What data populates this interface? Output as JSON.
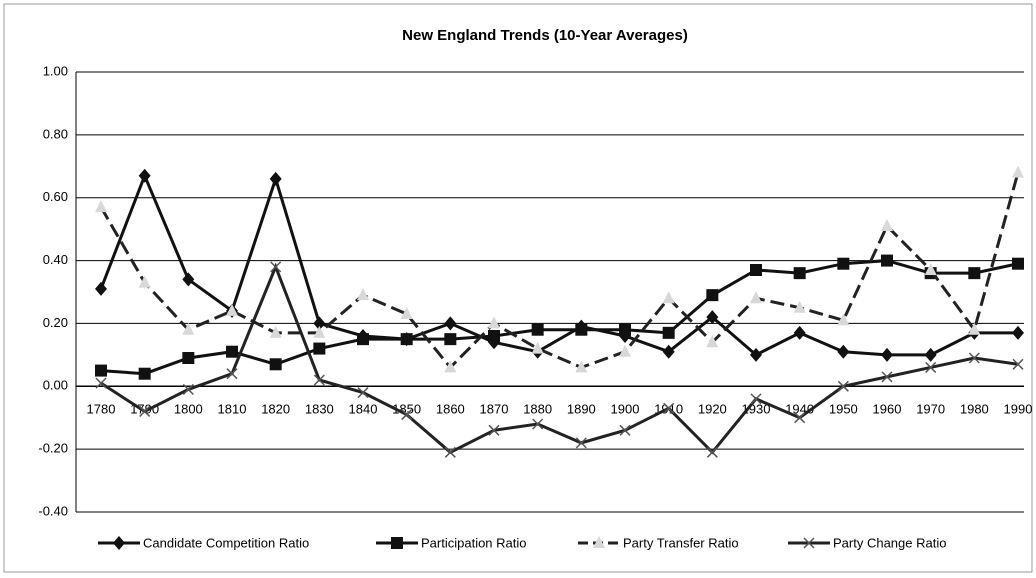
{
  "chart_data": {
    "type": "line",
    "title": "New England Trends (10-Year Averages)",
    "categories": [
      "1780",
      "1790",
      "1800",
      "1810",
      "1820",
      "1830",
      "1840",
      "1850",
      "1860",
      "1870",
      "1880",
      "1890",
      "1900",
      "1910",
      "1920",
      "1930",
      "1940",
      "1950",
      "1960",
      "1970",
      "1980",
      "1990"
    ],
    "ylim": [
      -0.4,
      1.0
    ],
    "yticks": [
      {
        "value": -0.4,
        "label": "-0.40"
      },
      {
        "value": -0.2,
        "label": "-0.20"
      },
      {
        "value": 0,
        "label": "0.00"
      },
      {
        "value": 0.2,
        "label": "0.20"
      },
      {
        "value": 0.4,
        "label": "0.40"
      },
      {
        "value": 0.6,
        "label": "0.60"
      },
      {
        "value": 0.8,
        "label": "0.80"
      },
      {
        "value": 1.0,
        "label": "1.00"
      }
    ],
    "grid": true,
    "legend": "bottom",
    "series": [
      {
        "name": "Candidate Competition Ratio",
        "color": "#111111",
        "marker": "diamond",
        "line_style": "solid",
        "marker_color": "#111111",
        "values": [
          0.31,
          0.67,
          0.34,
          0.24,
          0.66,
          0.2,
          0.16,
          0.15,
          0.2,
          0.14,
          0.11,
          0.19,
          0.16,
          0.11,
          0.22,
          0.1,
          0.17,
          0.11,
          0.1,
          0.1,
          0.17,
          0.17
        ]
      },
      {
        "name": "Participation Ratio",
        "color": "#111111",
        "marker": "square",
        "line_style": "solid",
        "marker_color": "#111111",
        "values": [
          0.05,
          0.04,
          0.09,
          0.11,
          0.07,
          0.12,
          0.15,
          0.15,
          0.15,
          0.16,
          0.18,
          0.18,
          0.18,
          0.17,
          0.29,
          0.37,
          0.36,
          0.39,
          0.4,
          0.36,
          0.36,
          0.39
        ]
      },
      {
        "name": "Party Transfer Ratio",
        "color": "#222222",
        "marker": "triangle",
        "line_style": "dashed",
        "marker_color": "#d8d8d8",
        "values": [
          0.57,
          0.33,
          0.18,
          0.24,
          0.17,
          0.17,
          0.29,
          0.23,
          0.06,
          0.2,
          0.12,
          0.06,
          0.11,
          0.28,
          0.14,
          0.28,
          0.25,
          0.21,
          0.51,
          0.37,
          0.18,
          0.68
        ]
      },
      {
        "name": "Party Change Ratio",
        "color": "#222222",
        "marker": "cross",
        "line_style": "solid",
        "marker_color": "#555555",
        "values": [
          0.01,
          -0.08,
          -0.01,
          0.04,
          0.38,
          0.02,
          -0.02,
          -0.09,
          -0.21,
          -0.14,
          -0.12,
          -0.18,
          -0.14,
          -0.07,
          -0.21,
          -0.04,
          -0.1,
          0.0,
          0.03,
          0.06,
          0.09,
          0.07
        ]
      }
    ]
  }
}
